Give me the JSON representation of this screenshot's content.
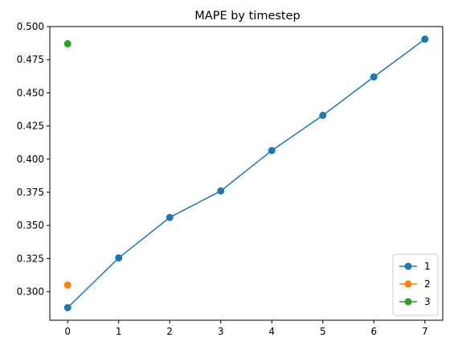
{
  "chart_data": {
    "type": "line",
    "title": "MAPE by timestep",
    "xlabel": "",
    "ylabel": "",
    "xlim": [
      -0.35,
      7.35
    ],
    "ylim": [
      0.2785,
      0.5
    ],
    "xticks": [
      0,
      1,
      2,
      3,
      4,
      5,
      6,
      7
    ],
    "xtick_labels": [
      "0",
      "1",
      "2",
      "3",
      "4",
      "5",
      "6",
      "7"
    ],
    "yticks": [
      0.3,
      0.325,
      0.35,
      0.375,
      0.4,
      0.425,
      0.45,
      0.475,
      0.5
    ],
    "ytick_labels": [
      "0.300",
      "0.325",
      "0.350",
      "0.375",
      "0.400",
      "0.425",
      "0.450",
      "0.475",
      "0.500"
    ],
    "grid": false,
    "legend_position": "lower-right",
    "series": [
      {
        "name": "1",
        "color": "#1f77b4",
        "x": [
          0,
          1,
          2,
          3,
          4,
          5,
          6,
          7
        ],
        "y": [
          0.288,
          0.3255,
          0.356,
          0.376,
          0.4065,
          0.433,
          0.462,
          0.4905
        ]
      },
      {
        "name": "2",
        "color": "#ff7f0e",
        "x": [
          0
        ],
        "y": [
          0.305
        ]
      },
      {
        "name": "3",
        "color": "#2ca02c",
        "x": [
          0
        ],
        "y": [
          0.487
        ]
      }
    ]
  }
}
